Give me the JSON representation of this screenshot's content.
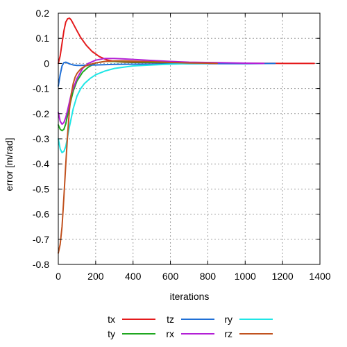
{
  "chart_data": {
    "type": "line",
    "xlabel": "iterations",
    "ylabel": "error [m/rad]",
    "xlim": [
      0,
      1400
    ],
    "ylim": [
      -0.8,
      0.2
    ],
    "xticks": [
      "0",
      "200",
      "400",
      "600",
      "800",
      "1000",
      "1200",
      "1400"
    ],
    "yticks": [
      "0.2",
      "0.1",
      "0",
      "-0.1",
      "-0.2",
      "-0.3",
      "-0.4",
      "-0.5",
      "-0.6",
      "-0.7",
      "-0.8"
    ],
    "grid": true,
    "legend_position": "bottom",
    "series": [
      {
        "name": "tx",
        "color": "#e41a1c",
        "x": [
          0,
          10,
          20,
          30,
          40,
          50,
          60,
          70,
          80,
          100,
          120,
          150,
          180,
          220,
          260,
          300,
          350,
          400,
          500,
          600,
          800,
          1000,
          1200,
          1370
        ],
        "y": [
          0.0,
          0.03,
          0.08,
          0.13,
          0.165,
          0.178,
          0.18,
          0.172,
          0.158,
          0.13,
          0.103,
          0.072,
          0.048,
          0.027,
          0.014,
          0.008,
          0.005,
          0.004,
          0.003,
          0.002,
          0.001,
          0.0005,
          0.0,
          0.0
        ]
      },
      {
        "name": "ty",
        "color": "#1fa81f",
        "x": [
          0,
          10,
          20,
          30,
          40,
          60,
          80,
          100,
          130,
          160,
          200,
          250,
          300,
          350,
          400,
          500,
          600,
          700
        ],
        "y": [
          -0.245,
          -0.262,
          -0.268,
          -0.262,
          -0.24,
          -0.17,
          -0.11,
          -0.07,
          -0.035,
          -0.015,
          0.002,
          0.008,
          0.008,
          0.007,
          0.006,
          0.004,
          0.002,
          0.0
        ]
      },
      {
        "name": "tz",
        "color": "#1f6fd6",
        "x": [
          0,
          10,
          20,
          30,
          40,
          50,
          60,
          80,
          100,
          120,
          150,
          200,
          300,
          400,
          600,
          800,
          1000,
          1160
        ],
        "y": [
          -0.09,
          -0.045,
          -0.01,
          0.003,
          0.005,
          0.002,
          -0.002,
          -0.006,
          -0.008,
          -0.008,
          -0.007,
          -0.006,
          -0.004,
          -0.003,
          -0.002,
          -0.001,
          -0.001,
          0.0
        ]
      },
      {
        "name": "rx",
        "color": "#b31fd6",
        "x": [
          0,
          10,
          20,
          30,
          40,
          50,
          70,
          100,
          130,
          160,
          200,
          250,
          300,
          350,
          400,
          500,
          600,
          700,
          850,
          1000,
          1100
        ],
        "y": [
          -0.195,
          -0.23,
          -0.242,
          -0.235,
          -0.215,
          -0.185,
          -0.12,
          -0.06,
          -0.02,
          0.0,
          0.013,
          0.02,
          0.02,
          0.018,
          0.016,
          0.012,
          0.008,
          0.005,
          0.003,
          0.001,
          0.0
        ]
      },
      {
        "name": "ry",
        "color": "#1fe6e6",
        "x": [
          0,
          10,
          20,
          30,
          40,
          50,
          60,
          80,
          100,
          120,
          140,
          170,
          200,
          250,
          300,
          350,
          400,
          500,
          600,
          700,
          800
        ],
        "y": [
          -0.3,
          -0.34,
          -0.355,
          -0.35,
          -0.33,
          -0.29,
          -0.25,
          -0.18,
          -0.13,
          -0.1,
          -0.08,
          -0.06,
          -0.045,
          -0.03,
          -0.02,
          -0.015,
          -0.01,
          -0.006,
          -0.003,
          -0.001,
          0.0
        ]
      },
      {
        "name": "rz",
        "color": "#c1521f",
        "x": [
          0,
          10,
          20,
          30,
          40,
          50,
          60,
          70,
          80,
          90,
          100,
          120,
          140,
          170,
          200,
          250,
          300,
          350,
          400,
          500,
          600,
          700,
          800,
          850
        ],
        "y": [
          -0.755,
          -0.72,
          -0.65,
          -0.53,
          -0.4,
          -0.28,
          -0.18,
          -0.12,
          -0.08,
          -0.055,
          -0.04,
          -0.022,
          -0.012,
          -0.004,
          0.002,
          0.008,
          0.01,
          0.01,
          0.009,
          0.007,
          0.004,
          0.002,
          0.001,
          0.0
        ]
      }
    ]
  }
}
